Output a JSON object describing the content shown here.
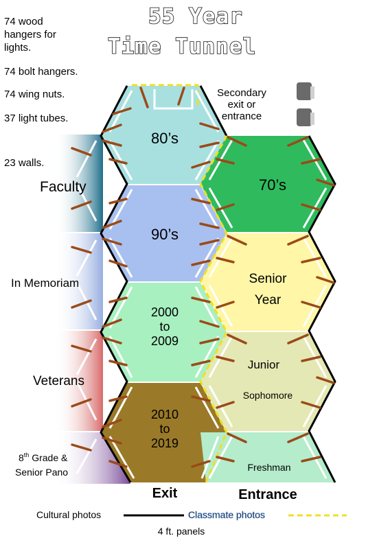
{
  "title": {
    "line1": "55 Year",
    "line2": "Time Tunnel"
  },
  "supplies": {
    "wood_hangers": [
      "74 wood",
      "hangers for",
      "lights."
    ],
    "bolt_hangers": "74 bolt hangers.",
    "wing_nuts": "74 wing nuts.",
    "light_tubes": "37 light tubes.",
    "walls": "23 walls."
  },
  "side_labels": {
    "faculty": "Faculty",
    "in_memoriam": "In Memoriam",
    "veterans": "Veterans",
    "eighth_grade_sup": "th",
    "eighth_grade_line1_pre": "8",
    "eighth_grade_line1_post": " Grade &",
    "eighth_grade_line2": "Senior Pano"
  },
  "secondary_exit": [
    "Secondary",
    "exit or",
    "entrance"
  ],
  "left_column": {
    "hex_80s": "80’s",
    "hex_90s": "90’s",
    "hex_2000s": [
      "2000",
      "to",
      "2009"
    ],
    "hex_2010s": [
      "2010",
      "to",
      "2019"
    ]
  },
  "right_column": {
    "hex_70s": "70’s",
    "hex_senior": [
      "Senior",
      "Year"
    ],
    "hex_junior": "Junior",
    "hex_sophomore": "Sophomore",
    "hex_freshman": "Freshman"
  },
  "bottom": {
    "exit": "Exit",
    "entrance": "Entrance"
  },
  "legend": {
    "cultural": "Cultural photos",
    "classmate": "Classmate photos",
    "panels": "4 ft. panels"
  },
  "colors": {
    "hex_80s": "#a8e0e0",
    "hex_90s": "#a8c0ef",
    "hex_2000s": "#a8f0c0",
    "hex_2010s": "#9a7a28",
    "hex_70s": "#2fba5e",
    "hex_senior": "#fff6a8",
    "hex_junior": "#e4e8b4",
    "hex_freshman": "#b4eccc",
    "faculty_band": "#3a8aa0",
    "memoriam_band": "#a8bce0",
    "veterans_band": "#e08a8a",
    "grade8_band": "#8a6aaa",
    "hanger_brown": "#9a4a18",
    "classmate_yellow": "#f0e020"
  }
}
